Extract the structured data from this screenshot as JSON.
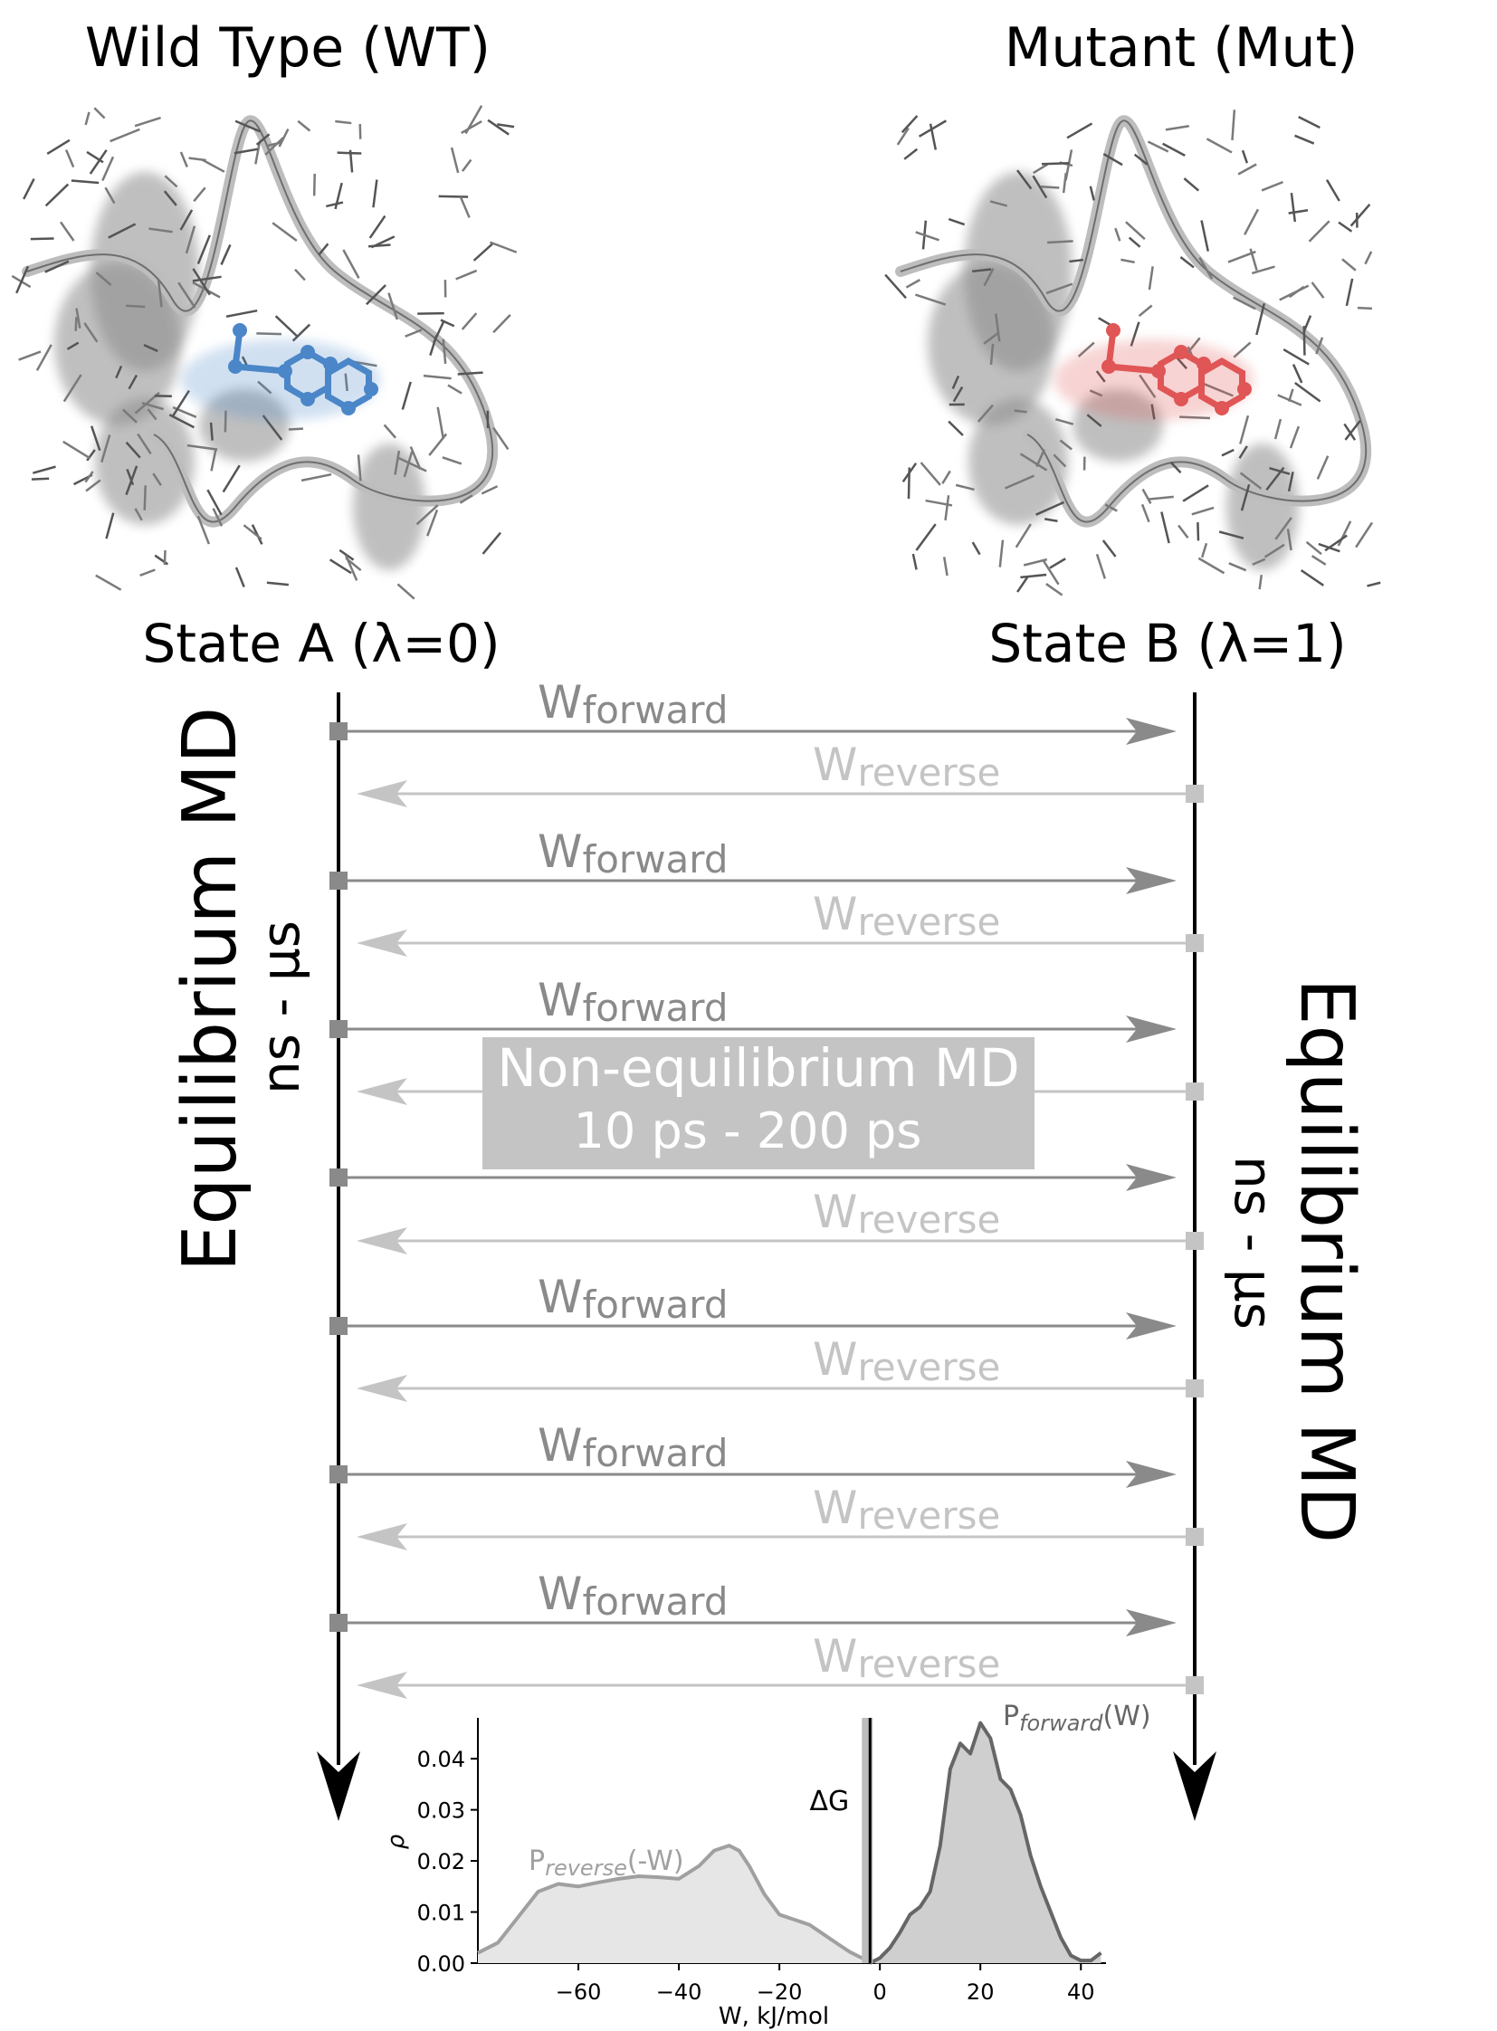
{
  "header": {
    "wt_title": "Wild Type (WT)",
    "mut_title": "Mutant (Mut)",
    "state_a": "State A (λ=0)",
    "state_b": "State B (λ=1)"
  },
  "left_side": {
    "title": "Equilibrium MD",
    "subtitle": "ns - μs"
  },
  "right_side": {
    "title": "Equilibrium MD",
    "subtitle": "ns - μs"
  },
  "arrows": {
    "forward_main": "W",
    "forward_sub": "forward",
    "reverse_main": "W",
    "reverse_sub": "reverse"
  },
  "center_box": {
    "line1": "Non-equilibrium MD",
    "line2": "10 ps - 200 ps"
  },
  "colors": {
    "wt_ligand": "#4a86c8",
    "mut_ligand": "#e05555",
    "forward": "#8a8a8a",
    "reverse": "#c4c4c4",
    "box": "#c4c4c4"
  },
  "chart_data": {
    "type": "area",
    "xlabel": "W, kJ/mol",
    "ylabel": "ρ",
    "xlim": [
      -80,
      45
    ],
    "ylim": [
      0,
      0.048
    ],
    "xticks": [
      -60,
      -40,
      -20,
      0,
      20,
      40
    ],
    "xtick_labels": [
      "−60",
      "−40",
      "−20",
      "0",
      "20",
      "40"
    ],
    "yticks": [
      0.0,
      0.01,
      0.02,
      0.03,
      0.04
    ],
    "ytick_labels": [
      "0.00",
      "0.01",
      "0.02",
      "0.03",
      "0.04"
    ],
    "dg_value": -2.5,
    "dg_label": "ΔG",
    "series": [
      {
        "label_main": "P",
        "label_sub": "reverse",
        "label_tail": "(-W)",
        "color": "#a0a0a0",
        "fill": "#e6e6e6",
        "x": [
          -80,
          -76,
          -72,
          -68,
          -64,
          -60,
          -56,
          -52,
          -48,
          -44,
          -40,
          -36,
          -33,
          -30,
          -28,
          -26,
          -23,
          -20,
          -17,
          -14,
          -11,
          -8,
          -6,
          -4,
          -2,
          0
        ],
        "y": [
          0.002,
          0.004,
          0.009,
          0.014,
          0.0155,
          0.015,
          0.0158,
          0.0165,
          0.017,
          0.0168,
          0.0165,
          0.019,
          0.022,
          0.023,
          0.022,
          0.019,
          0.0135,
          0.0095,
          0.0085,
          0.0075,
          0.0055,
          0.0035,
          0.0022,
          0.0012,
          0.0005,
          0.0002
        ]
      },
      {
        "label_main": "P",
        "label_sub": "forward",
        "label_tail": "(W)",
        "color": "#666666",
        "fill": "#cfcfcf",
        "x": [
          -2,
          0,
          2,
          4,
          6,
          8,
          10,
          12,
          14,
          16,
          18,
          20,
          22,
          24,
          26,
          28,
          30,
          32,
          34,
          36,
          38,
          40,
          42,
          44
        ],
        "y": [
          0.0,
          0.001,
          0.003,
          0.006,
          0.0095,
          0.011,
          0.014,
          0.023,
          0.038,
          0.043,
          0.041,
          0.047,
          0.044,
          0.036,
          0.034,
          0.029,
          0.021,
          0.015,
          0.01,
          0.005,
          0.0015,
          0.0005,
          0.0005,
          0.002
        ]
      }
    ]
  }
}
